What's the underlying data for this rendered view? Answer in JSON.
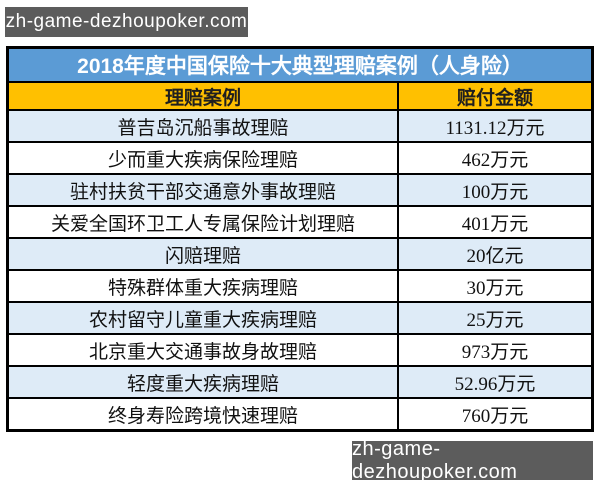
{
  "watermark_top": "zh-game-dezhoupoker.com",
  "watermark_bottom": "zh-game-dezhoupoker.com",
  "table": {
    "title": "2018年度中国保险十大典型理赔案例（人身险）",
    "columns": [
      "理赔案例",
      "赔付金额"
    ],
    "rows": [
      {
        "case": "普吉岛沉船事故理赔",
        "amount": "1131.12万元"
      },
      {
        "case": "少而重大疾病保险理赔",
        "amount": "462万元"
      },
      {
        "case": "驻村扶贫干部交通意外事故理赔",
        "amount": "100万元"
      },
      {
        "case": "关爱全国环卫工人专属保险计划理赔",
        "amount": "401万元"
      },
      {
        "case": "闪赔理赔",
        "amount": "20亿元"
      },
      {
        "case": "特殊群体重大疾病理赔",
        "amount": "30万元"
      },
      {
        "case": "农村留守儿童重大疾病理赔",
        "amount": "25万元"
      },
      {
        "case": "北京重大交通事故身故理赔",
        "amount": "973万元"
      },
      {
        "case": "轻度重大疾病理赔",
        "amount": "52.96万元"
      },
      {
        "case": "终身寿险跨境快速理赔",
        "amount": "760万元"
      }
    ]
  },
  "colors": {
    "title_bg": "#5B9BD5",
    "title_text": "#FFFFFF",
    "header_bg": "#FFC000",
    "header_text": "#1F1F1F",
    "row_alt_bg": "#DEEBF7",
    "row_bg": "#FFFFFF",
    "row_text": "#111111",
    "border": "#000000",
    "banner_bg": "#5C5C5C",
    "banner_text": "#FFFFFF"
  },
  "chart_data": {
    "type": "table",
    "title": "2018年度中国保险十大典型理赔案例（人身险）",
    "columns": [
      "理赔案例",
      "赔付金额"
    ],
    "rows": [
      [
        "普吉岛沉船事故理赔",
        "1131.12万元"
      ],
      [
        "少而重大疾病保险理赔",
        "462万元"
      ],
      [
        "驻村扶贫干部交通意外事故理赔",
        "100万元"
      ],
      [
        "关爱全国环卫工人专属保险计划理赔",
        "401万元"
      ],
      [
        "闪赔理赔",
        "20亿元"
      ],
      [
        "特殊群体重大疾病理赔",
        "30万元"
      ],
      [
        "农村留守儿童重大疾病理赔",
        "25万元"
      ],
      [
        "北京重大交通事故身故理赔",
        "973万元"
      ],
      [
        "轻度重大疾病理赔",
        "52.96万元"
      ],
      [
        "终身寿险跨境快速理赔",
        "760万元"
      ]
    ],
    "layout_hints": {
      "header_style": "gold band with bold dark text",
      "title_style": "blue band with bold white text",
      "row_striping": "odd rows light blue, even rows white",
      "grid": "heavy black borders"
    }
  }
}
